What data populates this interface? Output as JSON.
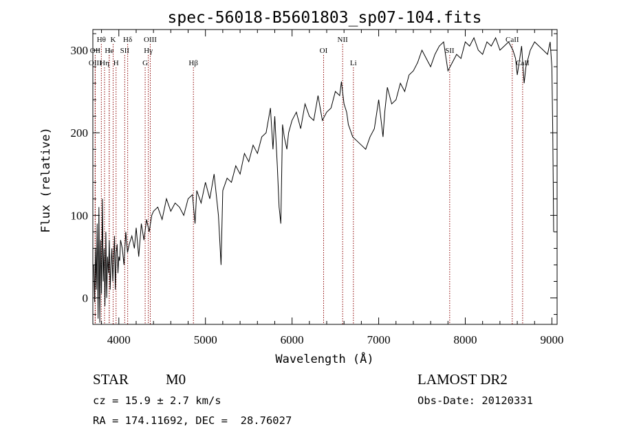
{
  "chart_data": {
    "type": "line",
    "title": "spec-56018-B5601803_sp07-104.fits",
    "xlabel": "Wavelength (Å)",
    "ylabel": "Flux (relative)",
    "xlim": [
      3700,
      9060
    ],
    "ylim": [
      -32,
      325
    ],
    "x_ticks": [
      4000,
      5000,
      6000,
      7000,
      8000,
      9000
    ],
    "y_ticks": [
      0,
      100,
      200,
      300
    ],
    "grid": false,
    "series": [
      {
        "color": "#000000",
        "x": [
          3710,
          3720,
          3730,
          3740,
          3750,
          3760,
          3770,
          3780,
          3790,
          3800,
          3810,
          3820,
          3830,
          3840,
          3850,
          3860,
          3870,
          3880,
          3890,
          3900,
          3910,
          3920,
          3930,
          3940,
          3950,
          3960,
          3970,
          3980,
          3990,
          4000,
          4010,
          4020,
          4040,
          4060,
          4080,
          4100,
          4120,
          4150,
          4180,
          4200,
          4230,
          4260,
          4290,
          4320,
          4350,
          4380,
          4400,
          4450,
          4500,
          4550,
          4600,
          4650,
          4700,
          4750,
          4800,
          4850,
          4880,
          4900,
          4950,
          5000,
          5050,
          5100,
          5150,
          5180,
          5200,
          5250,
          5300,
          5350,
          5400,
          5450,
          5500,
          5550,
          5600,
          5650,
          5700,
          5750,
          5780,
          5800,
          5830,
          5850,
          5870,
          5890,
          5910,
          5940,
          5960,
          6000,
          6050,
          6100,
          6150,
          6200,
          6250,
          6300,
          6350,
          6400,
          6450,
          6500,
          6550,
          6570,
          6600,
          6630,
          6650,
          6700,
          6750,
          6800,
          6850,
          6900,
          6950,
          7000,
          7050,
          7070,
          7100,
          7150,
          7200,
          7250,
          7300,
          7350,
          7400,
          7450,
          7500,
          7550,
          7600,
          7650,
          7700,
          7750,
          7800,
          7850,
          7900,
          7950,
          8000,
          8050,
          8100,
          8150,
          8200,
          8250,
          8300,
          8350,
          8400,
          8450,
          8500,
          8550,
          8580,
          8600,
          8650,
          8680,
          8700,
          8750,
          8800,
          8850,
          8900,
          8950,
          8980,
          9000,
          9010,
          9020
        ],
        "y": [
          40,
          -5,
          60,
          10,
          90,
          -25,
          110,
          -30,
          70,
          5,
          120,
          20,
          60,
          -10,
          80,
          0,
          50,
          30,
          70,
          10,
          40,
          60,
          20,
          45,
          75,
          10,
          55,
          65,
          30,
          50,
          45,
          70,
          60,
          40,
          80,
          55,
          65,
          75,
          60,
          85,
          50,
          90,
          70,
          95,
          80,
          100,
          105,
          110,
          95,
          120,
          105,
          115,
          110,
          100,
          120,
          125,
          90,
          130,
          115,
          140,
          120,
          150,
          100,
          40,
          130,
          145,
          140,
          160,
          150,
          175,
          165,
          185,
          175,
          195,
          200,
          230,
          180,
          220,
          160,
          110,
          90,
          210,
          195,
          180,
          200,
          215,
          225,
          205,
          235,
          220,
          215,
          245,
          215,
          225,
          230,
          250,
          245,
          262,
          235,
          225,
          210,
          195,
          190,
          185,
          180,
          195,
          205,
          240,
          195,
          225,
          255,
          235,
          240,
          260,
          250,
          270,
          275,
          285,
          300,
          290,
          280,
          295,
          305,
          310,
          275,
          285,
          295,
          290,
          310,
          305,
          315,
          300,
          295,
          310,
          305,
          315,
          300,
          305,
          310,
          300,
          290,
          270,
          305,
          260,
          280,
          300,
          310,
          305,
          300,
          295,
          310,
          280,
          200,
          80
        ]
      }
    ],
    "line_ids": [
      {
        "label": "Hθ",
        "x": 3798,
        "row": 0
      },
      {
        "label": "OII",
        "x": 3727,
        "row": 1
      },
      {
        "label": "He",
        "x": 3889,
        "row": 1
      },
      {
        "label": "OIII",
        "x": 3727,
        "row": 2
      },
      {
        "label": "Hη",
        "x": 3835,
        "row": 2
      },
      {
        "label": "K",
        "x": 3934,
        "row": 0
      },
      {
        "label": "H",
        "x": 3968,
        "row": 2
      },
      {
        "label": "I",
        "x": 3889,
        "row": 1
      },
      {
        "label": "SII",
        "x": 4068,
        "row": 1
      },
      {
        "label": "Hδ",
        "x": 4102,
        "row": 0
      },
      {
        "label": "OIII",
        "x": 4363,
        "row": 0
      },
      {
        "label": "Hγ",
        "x": 4340,
        "row": 1
      },
      {
        "label": "G",
        "x": 4304,
        "row": 2
      },
      {
        "label": "Hβ",
        "x": 4861,
        "row": 2
      },
      {
        "label": "OI",
        "x": 6364,
        "row": 1
      },
      {
        "label": "NII",
        "x": 6584,
        "row": 0
      },
      {
        "label": "Li",
        "x": 6708,
        "row": 2
      },
      {
        "label": "SII",
        "x": 7820,
        "row": 1
      },
      {
        "label": "CaII",
        "x": 8542,
        "row": 0
      },
      {
        "label": "CaII",
        "x": 8662,
        "row": 2
      }
    ]
  },
  "info": {
    "type": "STAR",
    "subclass": "M0",
    "survey": "LAMOST DR2",
    "cz": "cz = 15.9 ± 2.7 km/s",
    "obs_date": "Obs-Date: 20120331",
    "radec": "RA = 174.11692, DEC =  28.76027"
  },
  "colors": {
    "line_marker": "#8b0000",
    "spectrum": "#000000"
  }
}
